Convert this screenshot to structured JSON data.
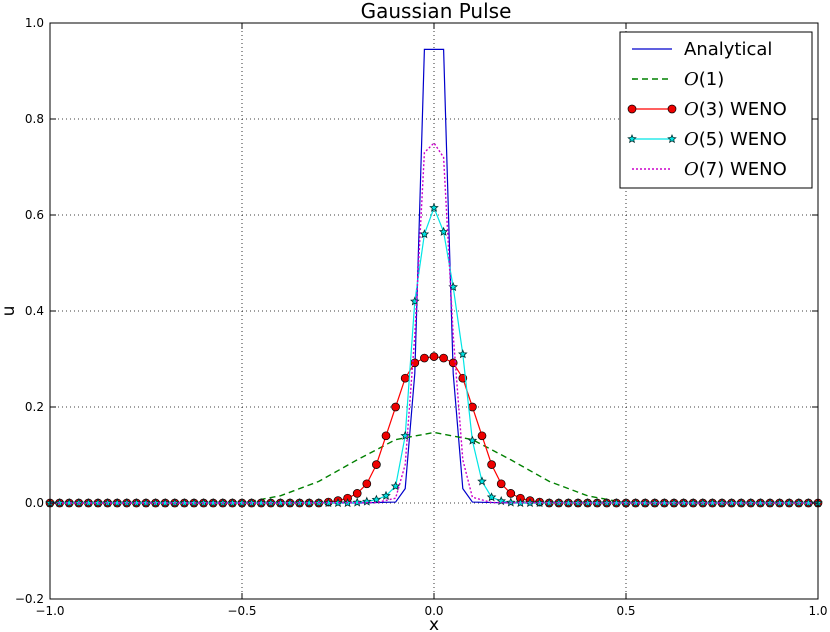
{
  "chart_data": {
    "type": "line",
    "title": "Gaussian Pulse",
    "xlabel": "x",
    "ylabel": "u",
    "xlim": [
      -1.0,
      1.0
    ],
    "ylim": [
      -0.2,
      1.0
    ],
    "xticks": [
      "−1.0",
      "−0.5",
      "0.0",
      "0.5",
      "1.0"
    ],
    "yticks": [
      "−0.2",
      "0.0",
      "0.2",
      "0.4",
      "0.6",
      "0.8",
      "1.0"
    ],
    "grid": true,
    "legend_position": "top-right",
    "series": [
      {
        "name": "Analytical",
        "legend_math": "",
        "legend_rest": "Analytical",
        "color": "#0000cc",
        "style": "solid",
        "marker": "none",
        "x": [
          -1.0,
          -0.5,
          -0.2,
          -0.1,
          -0.075,
          -0.05,
          -0.025,
          0.0,
          0.025,
          0.05,
          0.075,
          0.1,
          0.2,
          0.5,
          1.0
        ],
        "y": [
          0.0,
          0.0,
          0.0,
          0.002,
          0.03,
          0.27,
          0.945,
          0.945,
          0.945,
          0.27,
          0.03,
          0.002,
          0.0,
          0.0,
          0.0
        ]
      },
      {
        "name": "O(1)",
        "legend_math": "O",
        "legend_rest": "(1)",
        "color": "#008000",
        "style": "dashed",
        "marker": "none",
        "x": [
          -1.0,
          -0.5,
          -0.4,
          -0.3,
          -0.2,
          -0.1,
          0.0,
          0.1,
          0.2,
          0.3,
          0.4,
          0.5,
          1.0
        ],
        "y": [
          0.0,
          0.0,
          0.015,
          0.045,
          0.09,
          0.132,
          0.147,
          0.132,
          0.09,
          0.045,
          0.015,
          0.0,
          0.0
        ]
      },
      {
        "name": "O(3) WENO",
        "legend_math": "O",
        "legend_rest": "(3) WENO",
        "color": "#ff0000",
        "style": "solid",
        "marker": "circle",
        "x": [
          -1.0,
          -0.975,
          -0.95,
          -0.925,
          -0.9,
          -0.875,
          -0.85,
          -0.825,
          -0.8,
          -0.775,
          -0.75,
          -0.725,
          -0.7,
          -0.675,
          -0.65,
          -0.625,
          -0.6,
          -0.575,
          -0.55,
          -0.525,
          -0.5,
          -0.475,
          -0.45,
          -0.425,
          -0.4,
          -0.375,
          -0.35,
          -0.325,
          -0.3,
          -0.275,
          -0.25,
          -0.225,
          -0.2,
          -0.175,
          -0.15,
          -0.125,
          -0.1,
          -0.075,
          -0.05,
          -0.025,
          0.0,
          0.025,
          0.05,
          0.075,
          0.1,
          0.125,
          0.15,
          0.175,
          0.2,
          0.225,
          0.25,
          0.275,
          0.3,
          0.325,
          0.35,
          0.375,
          0.4,
          0.425,
          0.45,
          0.475,
          0.5,
          0.525,
          0.55,
          0.575,
          0.6,
          0.625,
          0.65,
          0.675,
          0.7,
          0.725,
          0.75,
          0.775,
          0.8,
          0.825,
          0.85,
          0.875,
          0.9,
          0.925,
          0.95,
          0.975,
          1.0
        ],
        "y": [
          0.0,
          0.0,
          0.0,
          0.0,
          0.0,
          0.0,
          0.0,
          0.0,
          0.0,
          0.0,
          0.0,
          0.0,
          0.0,
          0.0,
          0.0,
          0.0,
          0.0,
          0.0,
          0.0,
          0.0,
          0.0,
          0.0,
          0.0,
          0.0,
          0.0,
          0.0,
          0.0,
          0.0,
          0.0,
          0.002,
          0.005,
          0.01,
          0.02,
          0.04,
          0.08,
          0.14,
          0.2,
          0.26,
          0.292,
          0.302,
          0.305,
          0.302,
          0.292,
          0.26,
          0.2,
          0.14,
          0.08,
          0.04,
          0.02,
          0.01,
          0.005,
          0.002,
          0.0,
          0.0,
          0.0,
          0.0,
          0.0,
          0.0,
          0.0,
          0.0,
          0.0,
          0.0,
          0.0,
          0.0,
          0.0,
          0.0,
          0.0,
          0.0,
          0.0,
          0.0,
          0.0,
          0.0,
          0.0,
          0.0,
          0.0,
          0.0,
          0.0,
          0.0,
          0.0,
          0.0,
          0.0
        ]
      },
      {
        "name": "O(5) WENO",
        "legend_math": "O",
        "legend_rest": "(5) WENO",
        "color": "#00e5e5",
        "style": "solid",
        "marker": "star",
        "x": [
          -1.0,
          -0.975,
          -0.95,
          -0.925,
          -0.9,
          -0.875,
          -0.85,
          -0.825,
          -0.8,
          -0.775,
          -0.75,
          -0.725,
          -0.7,
          -0.675,
          -0.65,
          -0.625,
          -0.6,
          -0.575,
          -0.55,
          -0.525,
          -0.5,
          -0.475,
          -0.45,
          -0.425,
          -0.4,
          -0.375,
          -0.35,
          -0.325,
          -0.3,
          -0.275,
          -0.25,
          -0.225,
          -0.2,
          -0.175,
          -0.15,
          -0.125,
          -0.1,
          -0.075,
          -0.05,
          -0.025,
          0.0,
          0.025,
          0.05,
          0.075,
          0.1,
          0.125,
          0.15,
          0.175,
          0.2,
          0.225,
          0.25,
          0.275,
          0.3,
          0.325,
          0.35,
          0.375,
          0.4,
          0.425,
          0.45,
          0.475,
          0.5,
          0.525,
          0.55,
          0.575,
          0.6,
          0.625,
          0.65,
          0.675,
          0.7,
          0.725,
          0.75,
          0.775,
          0.8,
          0.825,
          0.85,
          0.875,
          0.9,
          0.925,
          0.95,
          0.975,
          1.0
        ],
        "y": [
          0.0,
          0.0,
          0.0,
          0.0,
          0.0,
          0.0,
          0.0,
          0.0,
          0.0,
          0.0,
          0.0,
          0.0,
          0.0,
          0.0,
          0.0,
          0.0,
          0.0,
          0.0,
          0.0,
          0.0,
          0.0,
          0.0,
          0.0,
          0.0,
          0.0,
          0.0,
          0.0,
          0.0,
          0.0,
          0.0,
          0.0,
          0.0,
          0.001,
          0.003,
          0.007,
          0.015,
          0.035,
          0.14,
          0.42,
          0.56,
          0.615,
          0.565,
          0.45,
          0.31,
          0.13,
          0.045,
          0.012,
          0.004,
          0.001,
          0.0,
          0.0,
          0.0,
          0.0,
          0.0,
          0.0,
          0.0,
          0.0,
          0.0,
          0.0,
          0.0,
          0.0,
          0.0,
          0.0,
          0.0,
          0.0,
          0.0,
          0.0,
          0.0,
          0.0,
          0.0,
          0.0,
          0.0,
          0.0,
          0.0,
          0.0,
          0.0,
          0.0,
          0.0,
          0.0,
          0.0,
          0.0
        ]
      },
      {
        "name": "O(7) WENO",
        "legend_math": "O",
        "legend_rest": "(7) WENO",
        "color": "#cc00cc",
        "style": "dotted",
        "marker": "none",
        "x": [
          -1.0,
          -0.5,
          -0.15,
          -0.1,
          -0.075,
          -0.05,
          -0.025,
          0.0,
          0.025,
          0.05,
          0.075,
          0.1,
          0.15,
          0.5,
          1.0
        ],
        "y": [
          0.0,
          0.0,
          0.001,
          0.01,
          0.08,
          0.35,
          0.73,
          0.75,
          0.72,
          0.35,
          0.09,
          0.012,
          0.001,
          0.0,
          0.0
        ]
      }
    ]
  }
}
